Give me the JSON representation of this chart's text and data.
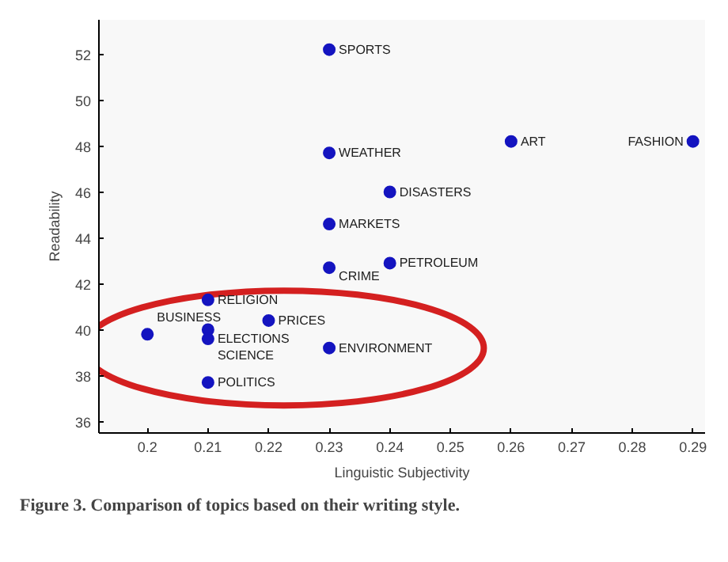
{
  "chart_data": {
    "type": "scatter",
    "xlabel": "Linguistic Subjectivity",
    "ylabel": "Readability",
    "x": [
      0.23,
      0.23,
      0.26,
      0.29,
      0.24,
      0.23,
      0.23,
      0.24,
      0.21,
      0.22,
      0.21,
      0.21,
      0.2,
      0.23,
      0.21
    ],
    "series": [
      {
        "color": "#1414c0",
        "values": [
          52.2,
          47.7,
          48.2,
          48.2,
          46.0,
          44.6,
          42.7,
          42.9,
          41.3,
          40.4,
          40.0,
          39.6,
          39.8,
          39.2,
          37.7
        ]
      }
    ],
    "xlim": [
      0.192,
      0.292
    ],
    "ylim": [
      35.5,
      53.5
    ],
    "xticks": [
      0.2,
      0.21,
      0.22,
      0.23,
      0.24,
      0.25,
      0.26,
      0.27,
      0.28,
      0.29
    ],
    "yticks": [
      36,
      38,
      40,
      42,
      44,
      46,
      48,
      50,
      52
    ],
    "marker": "circle",
    "grid": false,
    "annotations": [
      {
        "text": "SPORTS",
        "x": 0.23,
        "y": 52.2
      },
      {
        "text": "WEATHER",
        "x": 0.23,
        "y": 47.7
      },
      {
        "text": "ART",
        "x": 0.26,
        "y": 48.2
      },
      {
        "text": "FASHION",
        "x": 0.29,
        "y": 48.2
      },
      {
        "text": "DISASTERS",
        "x": 0.24,
        "y": 46.0
      },
      {
        "text": "MARKETS",
        "x": 0.23,
        "y": 44.6
      },
      {
        "text": "CRIME",
        "x": 0.23,
        "y": 42.7
      },
      {
        "text": "PETROLEUM",
        "x": 0.24,
        "y": 42.9
      },
      {
        "text": "RELIGION",
        "x": 0.21,
        "y": 41.3
      },
      {
        "text": "PRICES",
        "x": 0.22,
        "y": 40.4
      },
      {
        "text": "ELECTIONS",
        "x": 0.21,
        "y": 40.0
      },
      {
        "text": "SCIENCE",
        "x": 0.21,
        "y": 39.6
      },
      {
        "text": "BUSINESS",
        "x": 0.2,
        "y": 39.8
      },
      {
        "text": "ENVIRONMENT",
        "x": 0.23,
        "y": 39.2
      },
      {
        "text": "POLITICS",
        "x": 0.21,
        "y": 37.7
      },
      "Figure 3. Comparison of topics based on their writing style."
    ]
  }
}
